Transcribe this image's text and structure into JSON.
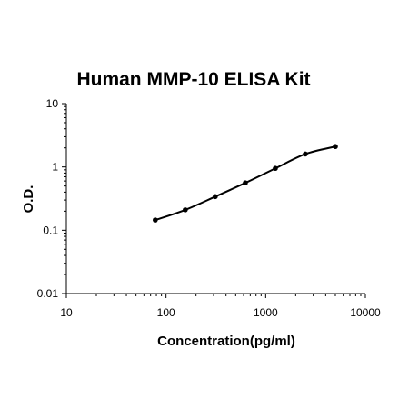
{
  "chart_data": {
    "type": "line",
    "title": "Human MMP-10 ELISA Kit",
    "xlabel": "Concentration(pg/ml)",
    "ylabel": "O.D.",
    "xscale": "log",
    "yscale": "log",
    "xlim": [
      10,
      10000
    ],
    "ylim": [
      0.01,
      10
    ],
    "xticks": [
      10,
      100,
      1000,
      10000
    ],
    "xtick_labels": [
      "10",
      "100",
      "1000",
      "10000"
    ],
    "yticks": [
      0.01,
      0.1,
      1,
      10
    ],
    "ytick_labels": [
      "0.01",
      "0.1",
      "1",
      "10"
    ],
    "grid": false,
    "series": [
      {
        "x": [
          78,
          156,
          312,
          625,
          1250,
          2500,
          5000
        ],
        "y": [
          0.145,
          0.21,
          0.34,
          0.56,
          0.95,
          1.6,
          2.1
        ]
      }
    ],
    "colors": {
      "line": "#000000",
      "marker": "#000000"
    }
  }
}
